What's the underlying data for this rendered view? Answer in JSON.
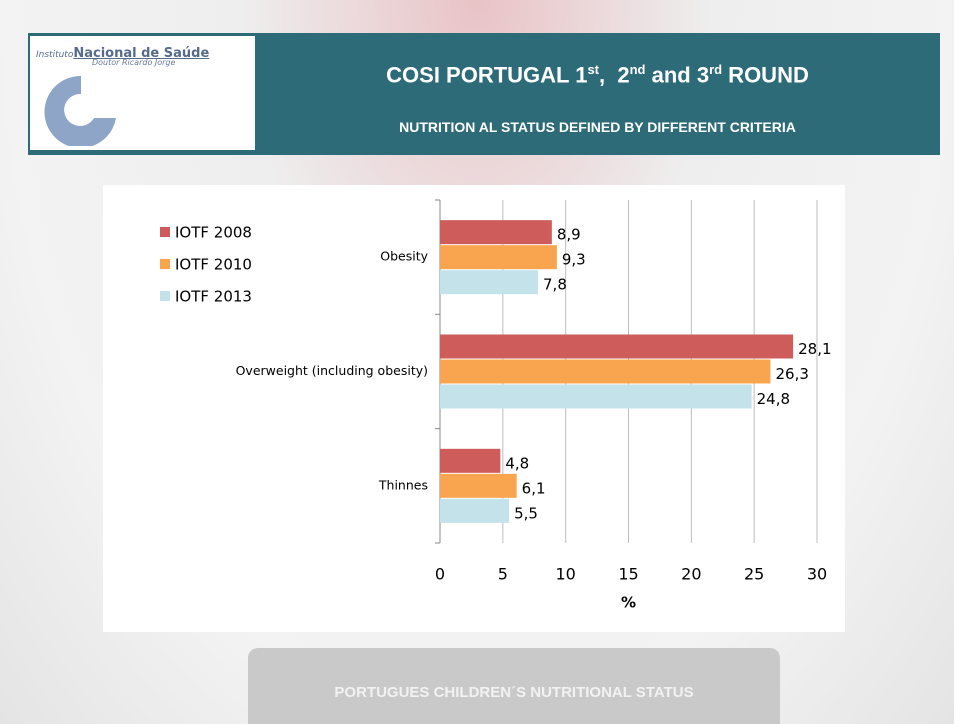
{
  "header": {
    "logo_prefix": "Instituto",
    "logo_name": "Nacional de Saúde",
    "logo_sub": "Doutor Ricardo Jorge",
    "title_parts": [
      "COSI PORTUGAL 1",
      "st",
      ",  2",
      "nd",
      " and 3",
      "rd",
      " ROUND"
    ],
    "subtitle": "NUTRITION AL STATUS DEFINED BY DIFFERENT CRITERIA"
  },
  "chart_data": {
    "type": "bar",
    "orientation": "horizontal",
    "categories": [
      "Obesity",
      "Overweight (including obesity)",
      "Thinnes"
    ],
    "series": [
      {
        "name": "IOTF 2008",
        "color": "#cd5c5a",
        "values": [
          8.9,
          28.1,
          4.8
        ],
        "value_labels": [
          "8,9",
          "28,1",
          "4,8"
        ]
      },
      {
        "name": "IOTF 2010",
        "color": "#f9a54f",
        "values": [
          9.3,
          26.3,
          6.1
        ],
        "value_labels": [
          "9,3",
          "26,3",
          "6,1"
        ]
      },
      {
        "name": "IOTF 2013",
        "color": "#c3e2ea",
        "values": [
          7.8,
          24.8,
          5.5
        ],
        "value_labels": [
          "7,8",
          "24,8",
          "5,5"
        ]
      }
    ],
    "xlabel": "%",
    "xlim": [
      0,
      30
    ],
    "xticks": [
      0,
      5,
      10,
      15,
      20,
      25,
      30
    ],
    "grid": true,
    "legend": "top-left"
  },
  "footer": {
    "text": "PORTUGUES CHILDREN´S NUTRITIONAL STATUS"
  }
}
